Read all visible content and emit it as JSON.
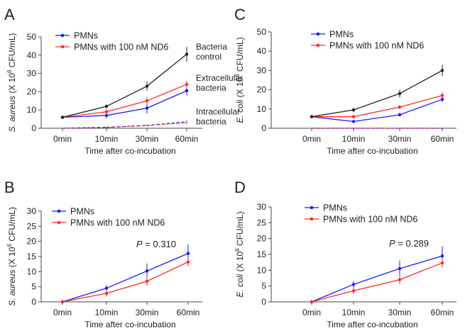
{
  "panels": [
    {
      "letter": "A"
    },
    {
      "letter": "C"
    },
    {
      "letter": "B"
    },
    {
      "letter": "D"
    }
  ],
  "chart_data": [
    {
      "type": "line",
      "panel": "A",
      "categories": [
        "0min",
        "10min",
        "30min",
        "60min"
      ],
      "xlabel": "Time after co-incubation",
      "ylabel": {
        "italic": "S. aureus",
        "rest": " (X 10",
        "sup": "6",
        "tail": " CFU/mL)"
      },
      "ylim": [
        0,
        50
      ],
      "yticks": [
        0,
        10,
        20,
        30,
        40,
        50
      ],
      "grid": false,
      "legend": {
        "placement": "top-left",
        "entries": [
          "PMNs",
          "PMNs with 100 nM ND6"
        ]
      },
      "series": [
        {
          "legend_index": 0,
          "color": "#1a1aff",
          "style": "solid",
          "values": [
            6,
            7,
            11,
            20.5
          ],
          "errors": [
            0.5,
            1.5,
            3,
            2.5
          ]
        },
        {
          "legend_index": 1,
          "color": "#ff2a2a",
          "style": "solid",
          "values": [
            6,
            9,
            15,
            24
          ],
          "errors": [
            0.5,
            1.5,
            2,
            2
          ]
        },
        {
          "color": "#222222",
          "style": "solid",
          "values": [
            6,
            12,
            23,
            40.5
          ],
          "errors": [
            0.5,
            1,
            2.5,
            4
          ]
        },
        {
          "legend_index": 0,
          "color": "#1a1aff",
          "style": "dashed",
          "values": [
            0,
            0.5,
            1.5,
            3.5
          ],
          "errors": [
            0,
            0.3,
            0.5,
            0.8
          ]
        },
        {
          "legend_index": 1,
          "color": "#ff2a2a",
          "style": "dotted",
          "values": [
            0,
            0.5,
            1.5,
            3
          ],
          "errors": [
            0,
            0.3,
            0.5,
            0.8
          ]
        }
      ],
      "annotations": [
        {
          "lines": [
            "Bacteria",
            "control"
          ],
          "at": [
            3.27,
            43
          ]
        },
        {
          "lines": [
            "Extracellular",
            "bacteria"
          ],
          "at": [
            3.27,
            26
          ]
        },
        {
          "lines": [
            "Intracellular",
            "bacteria"
          ],
          "at": [
            3.27,
            7.5
          ]
        }
      ]
    },
    {
      "type": "line",
      "panel": "C",
      "categories": [
        "0min",
        "10min",
        "30min",
        "60min"
      ],
      "xlabel": "Time after co-incubation",
      "ylabel": {
        "italic": "E. coli",
        "rest": " (X 10",
        "sup": "6",
        "tail": " CFU/mL)"
      },
      "ylim": [
        0,
        50
      ],
      "yticks": [
        0,
        10,
        20,
        30,
        40,
        50
      ],
      "grid": false,
      "legend": {
        "placement": "top-left",
        "entries": [
          "PMNs",
          "PMNs with 100 nM ND6"
        ]
      },
      "series": [
        {
          "legend_index": 0,
          "color": "#1a1aff",
          "style": "solid",
          "values": [
            6,
            3.5,
            7,
            15
          ],
          "errors": [
            0.5,
            0.5,
            1,
            1.5
          ]
        },
        {
          "legend_index": 1,
          "color": "#ff2a2a",
          "style": "solid",
          "values": [
            6,
            6,
            11,
            17
          ],
          "errors": [
            0.5,
            0.5,
            1,
            1.5
          ]
        },
        {
          "color": "#222222",
          "style": "solid",
          "values": [
            6,
            9.5,
            18,
            30
          ],
          "errors": [
            0.5,
            1,
            2,
            3
          ]
        },
        {
          "legend_index": 0,
          "color": "#1a1aff",
          "style": "dashed",
          "values": [
            0,
            0,
            0,
            0
          ],
          "errors": [
            0,
            0,
            0,
            0
          ]
        },
        {
          "legend_index": 1,
          "color": "#ff2a2a",
          "style": "dotted",
          "values": [
            0,
            0,
            0,
            0
          ],
          "errors": [
            0,
            0,
            0,
            0
          ]
        }
      ],
      "annotations": []
    },
    {
      "type": "line",
      "panel": "B",
      "categories": [
        "0min",
        "10min",
        "30min",
        "60min"
      ],
      "xlabel": "Time after co-incubation",
      "ylabel": {
        "italic": "S. aureus",
        "rest": " (X 10",
        "sup": "6",
        "tail": " CFU/mL)"
      },
      "ylim": [
        0,
        30
      ],
      "yticks": [
        0,
        5,
        10,
        15,
        20,
        25,
        30
      ],
      "grid": false,
      "legend": {
        "placement": "top-left",
        "entries": [
          "PMNs",
          "PMNs with 100 nM ND6"
        ]
      },
      "series": [
        {
          "legend_index": 0,
          "color": "#1a1aff",
          "style": "solid",
          "values": [
            0,
            4.5,
            10.2,
            16
          ],
          "errors": [
            0,
            1,
            2.5,
            3
          ]
        },
        {
          "legend_index": 1,
          "color": "#ff2a2a",
          "style": "solid",
          "values": [
            0,
            2.8,
            6.8,
            13.2
          ],
          "errors": [
            0,
            1,
            1.5,
            1.5
          ]
        }
      ],
      "annotations": [],
      "pvalue": {
        "label": "P",
        "text": " = 0.310",
        "at": [
          2.0,
          18
        ]
      }
    },
    {
      "type": "line",
      "panel": "D",
      "categories": [
        "0min",
        "10min",
        "30min",
        "60min"
      ],
      "xlabel": "Time after co-incubation",
      "ylabel": {
        "italic": "E. coli",
        "rest": " (X 10",
        "sup": "6",
        "tail": " CFU/mL)"
      },
      "ylim": [
        0,
        30
      ],
      "yticks": [
        0,
        5,
        10,
        15,
        20,
        25,
        30
      ],
      "grid": false,
      "legend": {
        "placement": "top-left",
        "entries": [
          "PMNs",
          "PMNs with 100 nM ND6"
        ]
      },
      "series": [
        {
          "legend_index": 0,
          "color": "#1a1aff",
          "style": "solid",
          "values": [
            0,
            5.5,
            10.5,
            14.5
          ],
          "errors": [
            0,
            1,
            2.5,
            3
          ]
        },
        {
          "legend_index": 1,
          "color": "#ff2a2a",
          "style": "solid",
          "values": [
            0,
            3.5,
            7,
            12.3
          ],
          "errors": [
            0,
            1,
            1.5,
            1.5
          ]
        }
      ],
      "annotations": [],
      "pvalue": {
        "label": "P",
        "text": " = 0.289",
        "at": [
          2.0,
          17.5
        ]
      }
    }
  ]
}
